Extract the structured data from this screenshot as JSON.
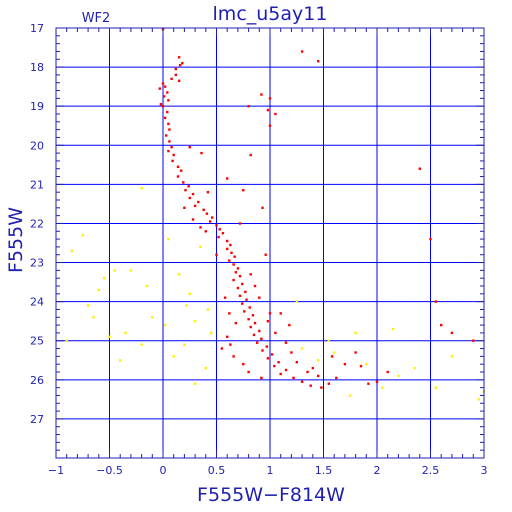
{
  "chart_data": {
    "type": "scatter",
    "title": "lmc_u5ay11",
    "subtitle": "WF2",
    "xlabel": "F555W−F814W",
    "ylabel": "F555W",
    "xlim": [
      -1,
      3
    ],
    "ylim": [
      28,
      17
    ],
    "y_inverted": true,
    "grid": true,
    "x_ticks": [
      -1,
      -0.5,
      0,
      0.5,
      1,
      1.5,
      2,
      2.5,
      3
    ],
    "x_tick_labels": [
      "−1",
      "−0.5",
      "0",
      "0.5",
      "1",
      "1.5",
      "2",
      "2.5",
      "3"
    ],
    "y_ticks": [
      17,
      18,
      19,
      20,
      21,
      22,
      23,
      24,
      25,
      26,
      27
    ],
    "y_tick_labels": [
      "17",
      "18",
      "19",
      "20",
      "21",
      "22",
      "23",
      "24",
      "25",
      "26",
      "27"
    ],
    "colors": {
      "axes": "#1f1fb0",
      "grid": "#0000ff",
      "background": "#ffffff"
    },
    "series": [
      {
        "color": "#ff0000",
        "points": [
          [
            0.0,
            17.03
          ],
          [
            0.15,
            17.75
          ],
          [
            0.16,
            17.95
          ],
          [
            0.12,
            18.05
          ],
          [
            0.12,
            18.2
          ],
          [
            0.15,
            18.35
          ],
          [
            0.0,
            18.42
          ],
          [
            0.02,
            18.5
          ],
          [
            -0.03,
            18.55
          ],
          [
            0.04,
            18.65
          ],
          [
            0.01,
            18.75
          ],
          [
            0.05,
            18.85
          ],
          [
            0.0,
            19.0
          ],
          [
            0.04,
            19.15
          ],
          [
            0.02,
            19.3
          ],
          [
            0.05,
            19.45
          ],
          [
            0.06,
            19.6
          ],
          [
            0.03,
            19.75
          ],
          [
            0.06,
            19.9
          ],
          [
            0.08,
            20.05
          ],
          [
            0.05,
            20.15
          ],
          [
            0.1,
            20.25
          ],
          [
            0.09,
            20.4
          ],
          [
            0.14,
            20.55
          ],
          [
            0.17,
            20.65
          ],
          [
            0.14,
            20.8
          ],
          [
            0.19,
            20.95
          ],
          [
            0.24,
            21.05
          ],
          [
            0.21,
            21.15
          ],
          [
            0.28,
            21.25
          ],
          [
            0.25,
            21.35
          ],
          [
            0.33,
            21.45
          ],
          [
            0.3,
            21.55
          ],
          [
            0.38,
            21.65
          ],
          [
            0.41,
            21.75
          ],
          [
            0.46,
            21.85
          ],
          [
            0.44,
            21.95
          ],
          [
            0.5,
            22.05
          ],
          [
            0.53,
            22.15
          ],
          [
            0.56,
            22.25
          ],
          [
            0.52,
            22.35
          ],
          [
            0.6,
            22.45
          ],
          [
            0.63,
            22.55
          ],
          [
            0.6,
            22.65
          ],
          [
            0.64,
            22.75
          ],
          [
            0.67,
            22.85
          ],
          [
            0.62,
            22.95
          ],
          [
            0.66,
            23.05
          ],
          [
            0.7,
            23.15
          ],
          [
            0.68,
            23.25
          ],
          [
            0.72,
            23.35
          ],
          [
            0.66,
            23.45
          ],
          [
            0.74,
            23.55
          ],
          [
            0.7,
            23.65
          ],
          [
            0.77,
            23.75
          ],
          [
            0.72,
            23.85
          ],
          [
            0.78,
            23.95
          ],
          [
            0.74,
            24.05
          ],
          [
            0.81,
            24.15
          ],
          [
            0.76,
            24.25
          ],
          [
            0.84,
            24.35
          ],
          [
            0.8,
            24.45
          ],
          [
            0.86,
            24.55
          ],
          [
            0.82,
            24.65
          ],
          [
            0.9,
            24.75
          ],
          [
            0.85,
            24.85
          ],
          [
            0.92,
            24.95
          ],
          [
            0.88,
            25.05
          ],
          [
            0.97,
            25.15
          ],
          [
            0.93,
            25.25
          ],
          [
            1.02,
            25.35
          ],
          [
            0.98,
            25.45
          ],
          [
            1.08,
            25.55
          ],
          [
            1.04,
            25.65
          ],
          [
            1.15,
            25.75
          ],
          [
            1.1,
            25.85
          ],
          [
            1.22,
            25.95
          ],
          [
            1.3,
            26.05
          ],
          [
            1.38,
            26.15
          ],
          [
            1.48,
            26.2
          ],
          [
            1.55,
            26.1
          ],
          [
            1.62,
            25.95
          ],
          [
            1.45,
            25.9
          ],
          [
            1.35,
            25.8
          ],
          [
            0.75,
            25.6
          ],
          [
            0.8,
            25.8
          ],
          [
            0.92,
            25.95
          ],
          [
            0.6,
            24.9
          ],
          [
            0.55,
            25.2
          ],
          [
            0.66,
            25.4
          ],
          [
            1.2,
            25.3
          ],
          [
            1.25,
            25.55
          ],
          [
            1.05,
            24.8
          ],
          [
            1.15,
            25.05
          ],
          [
            0.98,
            24.5
          ],
          [
            1.0,
            24.3
          ],
          [
            0.82,
            23.3
          ],
          [
            0.86,
            23.6
          ],
          [
            0.9,
            23.9
          ],
          [
            0.58,
            23.9
          ],
          [
            0.62,
            24.3
          ],
          [
            0.5,
            22.8
          ],
          [
            0.35,
            22.1
          ],
          [
            0.28,
            21.9
          ],
          [
            0.2,
            21.6
          ],
          [
            0.4,
            22.2
          ],
          [
            0.96,
            22.8
          ],
          [
            0.93,
            21.6
          ],
          [
            0.75,
            21.15
          ],
          [
            0.72,
            22.0
          ],
          [
            0.82,
            20.25
          ],
          [
            0.6,
            20.85
          ],
          [
            0.36,
            20.2
          ],
          [
            0.25,
            20.05
          ],
          [
            0.42,
            21.2
          ],
          [
            1.8,
            25.3
          ],
          [
            1.85,
            25.65
          ],
          [
            1.92,
            26.1
          ],
          [
            2.1,
            25.8
          ],
          [
            2.0,
            26.05
          ],
          [
            2.4,
            20.6
          ],
          [
            2.5,
            22.4
          ],
          [
            2.55,
            24.0
          ],
          [
            2.6,
            24.6
          ],
          [
            2.7,
            24.8
          ],
          [
            2.9,
            25.0
          ],
          [
            1.0,
            18.8
          ],
          [
            1.05,
            19.2
          ],
          [
            1.0,
            19.5
          ],
          [
            0.92,
            18.7
          ],
          [
            0.98,
            19.1
          ],
          [
            1.3,
            17.6
          ],
          [
            1.45,
            17.85
          ],
          [
            0.8,
            19.0
          ],
          [
            0.18,
            17.9
          ],
          [
            0.08,
            18.3
          ],
          [
            -0.02,
            18.95
          ],
          [
            1.7,
            25.6
          ],
          [
            1.58,
            25.4
          ],
          [
            1.4,
            25.7
          ],
          [
            1.18,
            24.6
          ],
          [
            1.1,
            24.3
          ],
          [
            0.68,
            24.55
          ],
          [
            0.63,
            25.1
          ]
        ]
      },
      {
        "color": "#ffee00",
        "points": [
          [
            -0.85,
            22.7
          ],
          [
            -0.7,
            24.1
          ],
          [
            -0.6,
            23.7
          ],
          [
            -0.5,
            24.9
          ],
          [
            -0.45,
            23.2
          ],
          [
            -0.4,
            25.5
          ],
          [
            -0.3,
            23.2
          ],
          [
            -0.2,
            25.1
          ],
          [
            -0.15,
            23.6
          ],
          [
            -0.1,
            24.4
          ],
          [
            0.05,
            22.4
          ],
          [
            0.2,
            25.1
          ],
          [
            0.25,
            23.8
          ],
          [
            0.3,
            24.5
          ],
          [
            0.35,
            22.6
          ],
          [
            0.4,
            25.7
          ],
          [
            0.45,
            24.8
          ],
          [
            -0.2,
            21.1
          ],
          [
            -0.75,
            22.3
          ],
          [
            -0.9,
            25.0
          ],
          [
            -0.55,
            23.4
          ],
          [
            0.1,
            25.4
          ],
          [
            0.22,
            24.1
          ],
          [
            0.15,
            23.3
          ],
          [
            1.45,
            25.5
          ],
          [
            1.6,
            25.3
          ],
          [
            1.75,
            26.4
          ],
          [
            1.9,
            25.6
          ],
          [
            2.05,
            26.2
          ],
          [
            2.2,
            25.9
          ],
          [
            2.35,
            25.7
          ],
          [
            2.55,
            26.2
          ],
          [
            2.7,
            25.4
          ],
          [
            2.95,
            26.5
          ],
          [
            3.0,
            26.3
          ],
          [
            1.8,
            24.8
          ],
          [
            1.25,
            24.0
          ],
          [
            1.3,
            25.2
          ],
          [
            1.55,
            25.0
          ],
          [
            2.15,
            24.7
          ],
          [
            -0.65,
            24.4
          ],
          [
            -0.35,
            24.8
          ],
          [
            0.02,
            24.6
          ],
          [
            0.42,
            24.2
          ],
          [
            0.3,
            26.1
          ]
        ]
      }
    ]
  }
}
